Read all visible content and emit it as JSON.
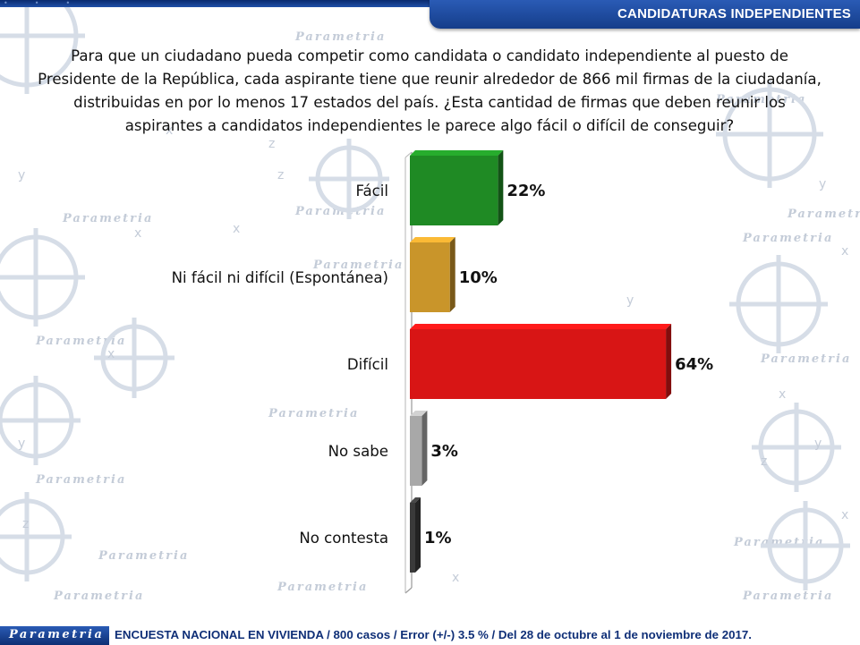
{
  "header": {
    "section_title": "CANDIDATURAS INDEPENDIENTES"
  },
  "question": "Para que un ciudadano pueda competir como candidata o candidato independiente al puesto de Presidente de la República, cada aspirante tiene que reunir alrededor de 866 mil firmas de la ciudadanía, distribuidas en por lo menos 17 estados del país. ¿Esta cantidad de firmas que deben reunir los aspirantes a candidatos independientes le parece algo fácil o difícil de conseguir?",
  "watermark": {
    "brand": "Parametria",
    "glyphs": [
      "x",
      "y",
      "z"
    ]
  },
  "footer": {
    "logo_text": "Parametria",
    "note": "ENCUESTA NACIONAL EN VIVIENDA / 800 casos / Error (+/-) 3.5 % / Del 28 de octubre al 1 de noviembre de 2017."
  },
  "chart_data": {
    "type": "bar",
    "orientation": "horizontal",
    "categories": [
      "Fácil",
      "Ni fácil ni difícil (Espontánea)",
      "Difícil",
      "No sabe",
      "No contesta"
    ],
    "values": [
      22,
      10,
      64,
      3,
      1
    ],
    "value_labels": [
      "22%",
      "10%",
      "64%",
      "3%",
      "1%"
    ],
    "colors": [
      "#1f8a24",
      "#c9952a",
      "#d81515",
      "#a8a8a8",
      "#3a3a3a"
    ],
    "xlim": [
      0,
      64
    ],
    "grid": false
  }
}
